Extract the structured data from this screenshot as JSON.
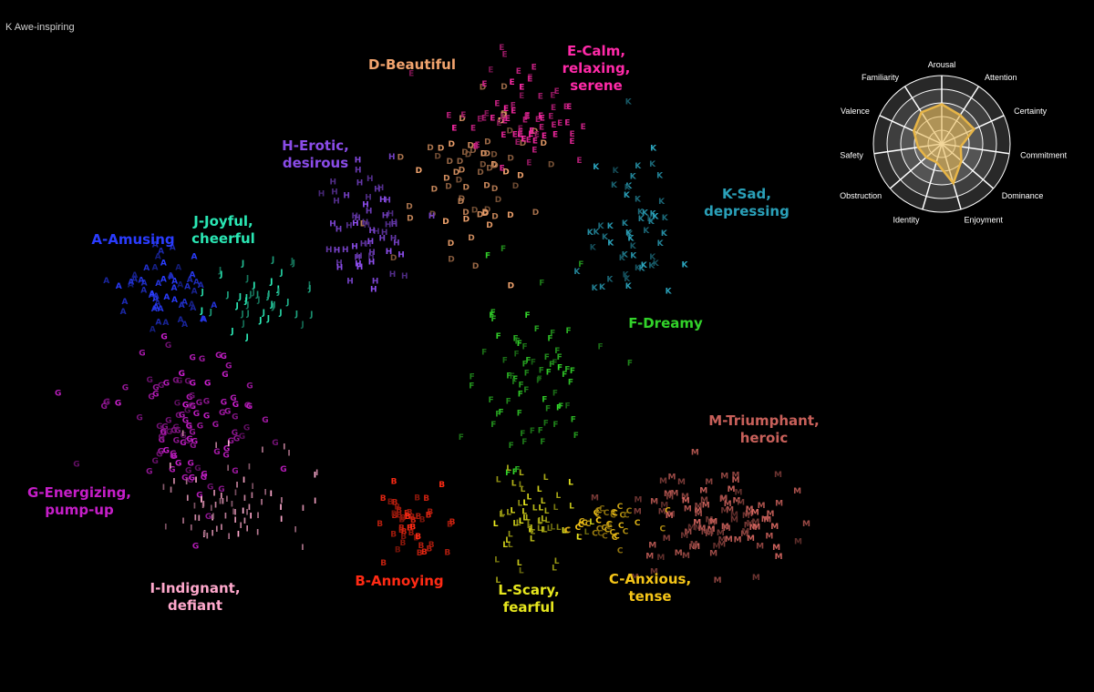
{
  "header": {
    "fragment": "K Awe-inspiring"
  },
  "chart_data": {
    "type": "scatter",
    "title": "",
    "xlabel": "",
    "ylabel": "",
    "grid": false,
    "legend": "none",
    "clusters": [
      {
        "code": "A",
        "name": "A-Amusing",
        "lines": [
          "A-Amusing"
        ],
        "color": "#2a3cff",
        "center": [
          175,
          322
        ],
        "spread": [
          50,
          35
        ],
        "count": 55
      },
      {
        "code": "B",
        "name": "B-Annoying",
        "lines": [
          "B-Annoying"
        ],
        "color": "#ff2a14",
        "center": [
          445,
          575
        ],
        "spread": [
          30,
          30
        ],
        "count": 45
      },
      {
        "code": "C",
        "name": "C-Anxious, tense",
        "lines": [
          "C-Anxious,",
          "tense"
        ],
        "color": "#f5c518",
        "center": [
          660,
          580
        ],
        "spread": [
          40,
          25
        ],
        "count": 40
      },
      {
        "code": "D",
        "name": "D-Beautiful",
        "lines": [
          "D-Beautiful"
        ],
        "color": "#f2a46e",
        "center": [
          520,
          200
        ],
        "spread": [
          60,
          70
        ],
        "count": 70
      },
      {
        "code": "E",
        "name": "E-Calm, relaxing, serene",
        "lines": [
          "E-Calm,",
          "relaxing,",
          "serene"
        ],
        "color": "#ff2aa8",
        "center": [
          560,
          130
        ],
        "spread": [
          55,
          50
        ],
        "count": 70
      },
      {
        "code": "F",
        "name": "F-Dreamy",
        "lines": [
          "F-Dreamy"
        ],
        "color": "#32d22a",
        "center": [
          570,
          420
        ],
        "spread": [
          60,
          80
        ],
        "count": 75
      },
      {
        "code": "G",
        "name": "G-Energizing, pump-up",
        "lines": [
          "G-Energizing,",
          "pump-up"
        ],
        "color": "#c51ec8",
        "center": [
          200,
          470
        ],
        "spread": [
          70,
          70
        ],
        "count": 110
      },
      {
        "code": "H",
        "name": "H-Erotic, desirous",
        "lines": [
          "H-Erotic,",
          "desirous"
        ],
        "color": "#8a4ce8",
        "center": [
          395,
          250
        ],
        "spread": [
          45,
          60
        ],
        "count": 60
      },
      {
        "code": "I",
        "name": "I-Indignant, defiant",
        "lines": [
          "I-Indignant,",
          "defiant"
        ],
        "color": "#ffa8cc",
        "center": [
          250,
          560
        ],
        "spread": [
          75,
          40
        ],
        "count": 75
      },
      {
        "code": "J",
        "name": "J-Joyful, cheerful",
        "lines": [
          "J-Joyful,",
          "cheerful"
        ],
        "color": "#2ae7b4",
        "center": [
          280,
          330
        ],
        "spread": [
          55,
          35
        ],
        "count": 45
      },
      {
        "code": "K",
        "name": "K-Sad, depressing",
        "lines": [
          "K-Sad,",
          "depressing"
        ],
        "color": "#2aa0b8",
        "center": [
          690,
          250
        ],
        "spread": [
          45,
          70
        ],
        "count": 55
      },
      {
        "code": "L",
        "name": "L-Scary, fearful",
        "lines": [
          "L-Scary,",
          "fearful"
        ],
        "color": "#e6e61e",
        "center": [
          585,
          575
        ],
        "spread": [
          45,
          40
        ],
        "count": 60
      },
      {
        "code": "M",
        "name": "M-Triumphant, heroic",
        "lines": [
          "M-Triumphant,",
          "heroic"
        ],
        "color": "#c8605a",
        "center": [
          780,
          570
        ],
        "spread": [
          70,
          45
        ],
        "count": 100
      }
    ],
    "label_positions": {
      "A": [
        146,
        268
      ],
      "B": [
        438,
        643
      ],
      "C": [
        713,
        641
      ],
      "D": [
        452,
        76
      ],
      "E": [
        654,
        61
      ],
      "F": [
        730,
        360
      ],
      "G": [
        87,
        546
      ],
      "H": [
        346,
        165
      ],
      "I": [
        214,
        651
      ],
      "J": [
        245,
        248
      ],
      "K": [
        819,
        218
      ],
      "L": [
        580,
        653
      ],
      "M": [
        838,
        467
      ]
    }
  },
  "radar": {
    "axes": [
      "Arousal",
      "Attention",
      "Certainty",
      "Commitment",
      "Dominance",
      "Enjoyment",
      "Identity",
      "Obstruction",
      "Safety",
      "Valence",
      "Familiarity"
    ],
    "values": [
      0.58,
      0.5,
      0.52,
      0.28,
      0.38,
      0.6,
      0.28,
      0.3,
      0.35,
      0.45,
      0.55
    ],
    "rings": 5,
    "fill_color": "#e7b547"
  }
}
